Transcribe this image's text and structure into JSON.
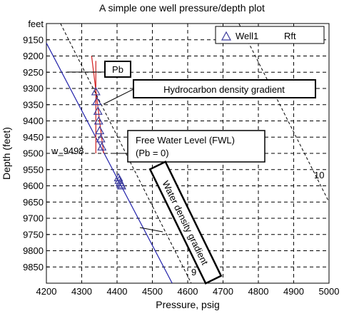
{
  "chart_data": {
    "type": "scatter",
    "title": "A simple one well pressure/depth plot",
    "xlabel": "Pressure, psig",
    "ylabel": "Depth (feet)",
    "y_unit_label": "feet",
    "xlim": [
      4200,
      5000
    ],
    "ylim": [
      9900,
      9100
    ],
    "y_inverted": true,
    "x_ticks": [
      4200,
      4300,
      4400,
      4500,
      4600,
      4700,
      4800,
      4900,
      5000
    ],
    "y_ticks": [
      9150,
      9200,
      9250,
      9300,
      9350,
      9400,
      9450,
      9500,
      9550,
      9600,
      9650,
      9700,
      9750,
      9800,
      9850
    ],
    "grid": true,
    "legend": {
      "position": "top-right",
      "entries": [
        {
          "name": "Well1",
          "label": "Rft"
        }
      ]
    },
    "series": [
      {
        "name": "Well1",
        "kind": "points",
        "marker": "triangle",
        "color": "#3b3b9c",
        "points": [
          {
            "x": 4340,
            "y": 9310
          },
          {
            "x": 4343,
            "y": 9340
          },
          {
            "x": 4346,
            "y": 9370
          },
          {
            "x": 4348,
            "y": 9400
          },
          {
            "x": 4351,
            "y": 9430
          },
          {
            "x": 4354,
            "y": 9455
          },
          {
            "x": 4357,
            "y": 9480
          },
          {
            "x": 4404,
            "y": 9575
          },
          {
            "x": 4406,
            "y": 9583
          },
          {
            "x": 4409,
            "y": 9590
          },
          {
            "x": 4411,
            "y": 9596
          },
          {
            "x": 4413,
            "y": 9600
          }
        ]
      },
      {
        "kind": "line",
        "role": "water-gradient",
        "color": "#2222aa",
        "points": [
          {
            "x": 4200,
            "y": 9160
          },
          {
            "x": 4556,
            "y": 9900
          }
        ]
      },
      {
        "kind": "line",
        "role": "hydrocarbon-gradient",
        "color": "#d42020",
        "points": [
          {
            "x": 4328,
            "y": 9200
          },
          {
            "x": 4362,
            "y": 9500
          }
        ]
      },
      {
        "kind": "line",
        "role": "pb-line",
        "color": "#cc2222",
        "points": [
          {
            "x": 4340,
            "y": 9215
          },
          {
            "x": 4340,
            "y": 9500
          }
        ]
      },
      {
        "kind": "line",
        "role": "reference-9",
        "dash": true,
        "color": "#000000",
        "label": "9",
        "points": [
          {
            "x": 4240,
            "y": 9100
          },
          {
            "x": 4610,
            "y": 9900
          }
        ]
      },
      {
        "kind": "line",
        "role": "reference-10",
        "dash": true,
        "color": "#000000",
        "label": "10",
        "points": [
          {
            "x": 4745,
            "y": 9100
          },
          {
            "x": 5000,
            "y": 9650
          }
        ]
      }
    ],
    "annotations": {
      "pb": "Pb",
      "hydrocarbon": "Hydrocarbon density gradient",
      "fwl_line1": "Free Water Level (FWL)",
      "fwl_line2": "(Pb = 0)",
      "fwl_depth": "w_9498",
      "water": "Water density gradient",
      "label9": "9",
      "label10": "10"
    }
  }
}
